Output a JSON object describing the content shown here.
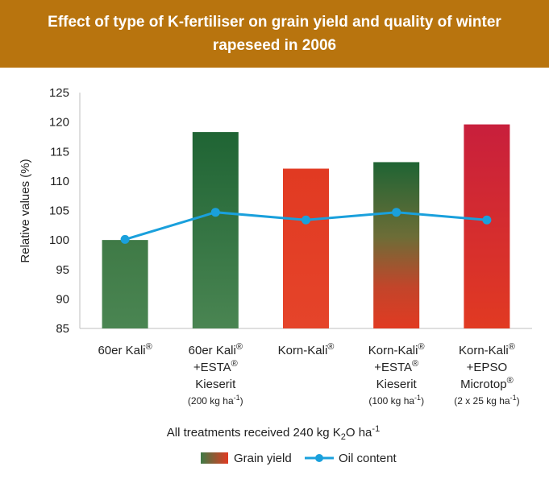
{
  "header": {
    "title": "Effect of type of K-fertiliser on grain yield and quality of winter rapeseed in 2006"
  },
  "colors": {
    "header_bg": "#b8740e",
    "green": "#3f7a46",
    "dark_green": "#1f6434",
    "red": "#e13a22",
    "crimson": "#c81f3c",
    "line": "#1aa0dc"
  },
  "chart_data": {
    "type": "bar",
    "ylabel": "Relative values (%)",
    "xlabel_main": "All treatments received 240 kg K",
    "xlabel_sub": "2",
    "xlabel_tail": "O ha",
    "xlabel_sup": "-1",
    "ylim": [
      85,
      125
    ],
    "yticks": [
      85,
      90,
      95,
      100,
      105,
      110,
      115,
      120,
      125
    ],
    "grid": false,
    "legend_position": "bottom-center",
    "categories": [
      {
        "lines": [
          "60er Kali®"
        ],
        "note": ""
      },
      {
        "lines": [
          "60er Kali®",
          "+ESTA®",
          "Kieserit"
        ],
        "note": "(200 kg ha-1)"
      },
      {
        "lines": [
          "Korn-Kali®"
        ],
        "note": ""
      },
      {
        "lines": [
          "Korn-Kali®",
          "+ESTA®",
          "Kieserit"
        ],
        "note": "(100 kg ha-1)"
      },
      {
        "lines": [
          "Korn-Kali®",
          "+EPSO",
          "Microtop®"
        ],
        "note": "(2 x 25 kg ha-1)"
      }
    ],
    "series": [
      {
        "name": "Grain yield",
        "kind": "bar",
        "values": [
          100,
          118.3,
          112.1,
          113.2,
          119.6
        ],
        "fill": [
          "green",
          "green-vertical-dark",
          "red",
          "green-to-red",
          "crimson-to-red"
        ]
      },
      {
        "name": "Oil content",
        "kind": "line",
        "values": [
          100.1,
          104.7,
          103.4,
          104.7,
          103.4
        ]
      }
    ]
  }
}
